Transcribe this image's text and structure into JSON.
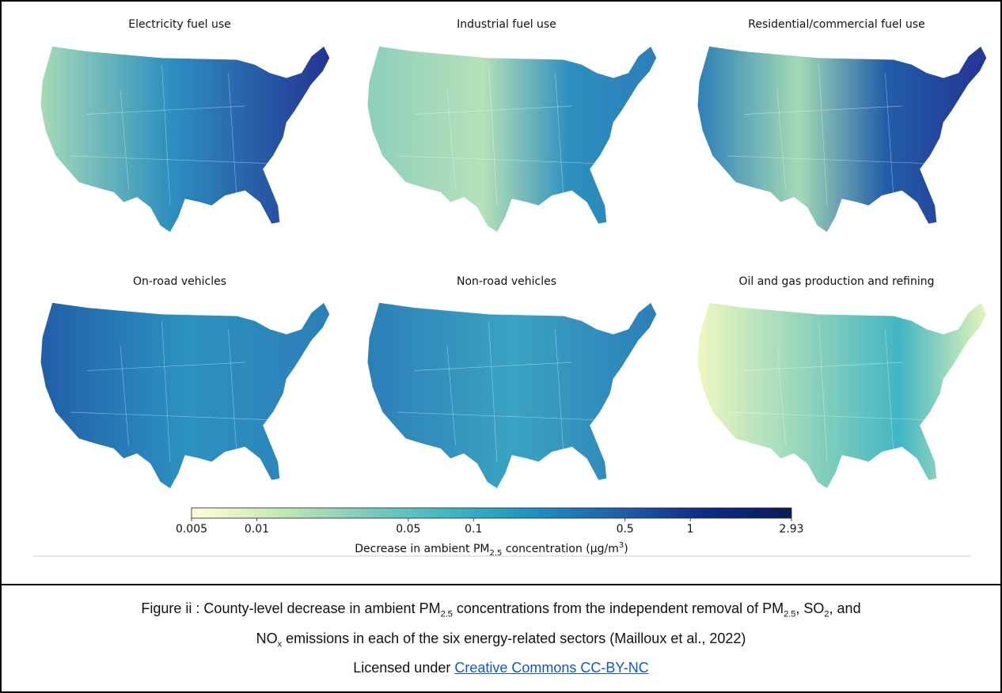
{
  "figure": {
    "panels": [
      {
        "title": "Electricity fuel use"
      },
      {
        "title": "Industrial fuel use"
      },
      {
        "title": "Residential/commercial fuel use"
      },
      {
        "title": "On-road vehicles"
      },
      {
        "title": "Non-road vehicles"
      },
      {
        "title": "Oil and gas production and refining"
      }
    ],
    "colorbar": {
      "scale": "log",
      "lim": [
        0.005,
        2.93
      ],
      "ticks": [
        0.005,
        0.01,
        0.05,
        0.1,
        0.5,
        1,
        2.93
      ],
      "colors": [
        "#ffffd9",
        "#c7e9b4",
        "#7fcdbb",
        "#41b6c4",
        "#1d91c0",
        "#225ea8",
        "#0c2c84",
        "#081d58"
      ],
      "label": [
        "Decrease in ambient PM",
        "2.5",
        " concentration (µg/m",
        "3",
        ")"
      ]
    }
  },
  "caption": {
    "lines": [
      [
        "Figure ii : County-level decrease in ambient PM",
        "2.5",
        " concentrations from the independent removal of PM",
        "2.5",
        ", SO",
        "2",
        ", and"
      ],
      [
        "NO",
        "x",
        " emissions in each of the six energy-related sectors  (Mailloux et al., 2022)"
      ],
      [
        "Licensed under ",
        "Creative Commons CC-BY-NC"
      ]
    ]
  }
}
